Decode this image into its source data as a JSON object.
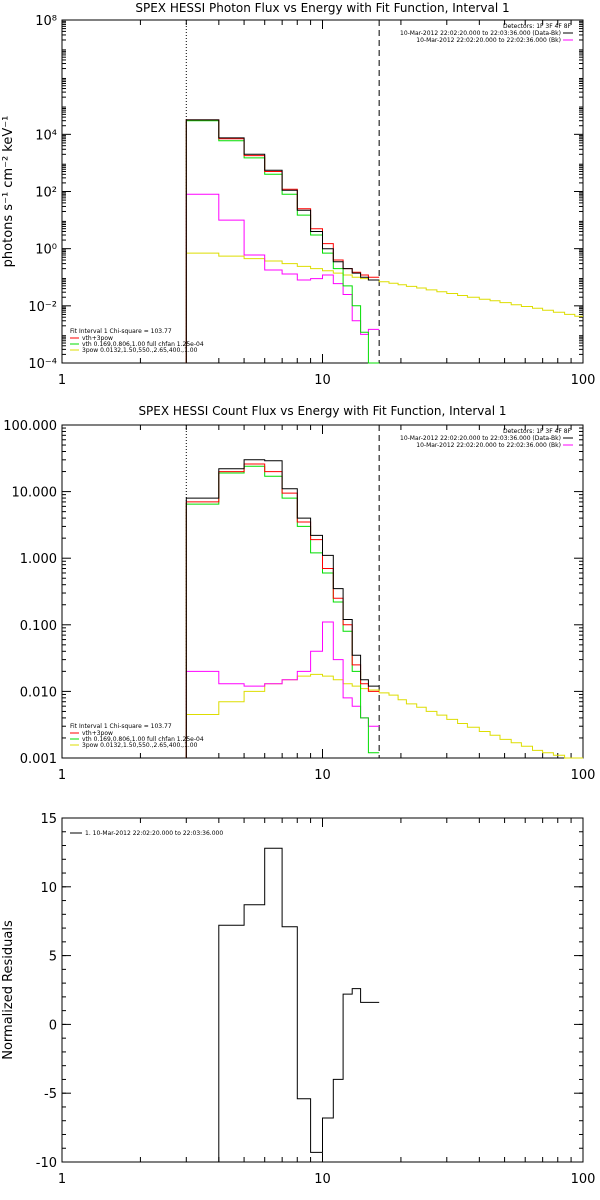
{
  "colors": {
    "total": "#000000",
    "vth_3pow": "#ff0000",
    "vth": "#00dd00",
    "three_pow": "#dddd00",
    "background": "#ff00ff"
  },
  "chart_data": [
    {
      "type": "line",
      "title": "SPEX HESSI Photon Flux vs Energy with Fit Function, Interval 1",
      "ylabel": "photons s⁻¹ cm⁻² keV⁻¹",
      "xlabel": "",
      "xscale": "log",
      "yscale": "log",
      "xlim": [
        1,
        100
      ],
      "ylim": [
        0.0001,
        100000000
      ],
      "xticks": [
        {
          "v": 1,
          "label": "1"
        },
        {
          "v": 10,
          "label": "10"
        },
        {
          "v": 100,
          "label": "100"
        }
      ],
      "yticks": [
        {
          "v": 0.0001,
          "label": "10⁻⁴"
        },
        {
          "v": 0.01,
          "label": "10⁻²"
        },
        {
          "v": 1,
          "label": "10⁰"
        },
        {
          "v": 100,
          "label": "10²"
        },
        {
          "v": 10000,
          "label": "10⁴"
        },
        {
          "v": 100000000,
          "label": "10⁸"
        }
      ],
      "grid": false,
      "markers": [
        {
          "x": 3,
          "style": "dotted"
        },
        {
          "x": 16.5,
          "style": "dashed"
        }
      ],
      "detectors": {
        "line1": "Detectors: 1F 3F 4F 8F",
        "line2": "10-Mar-2012 22:02:20.000 to 22:03:36.000 (Data-Bk)",
        "line3": "10-Mar-2012 22:02:20.000 to 22:02:36.000 (Bk)"
      },
      "legend": {
        "header": "Fit Interval 1    Chi-square = 103.77",
        "items": [
          "vth+3pow",
          "vth 0.169,0.806,1.00  full chfan 1.25e-04",
          "3pow 0.0132,1.50,550.,2.65,400.,1.00"
        ]
      },
      "edges": [
        3,
        4,
        5,
        6,
        7,
        8,
        9,
        10,
        11,
        12,
        13,
        14,
        15,
        16.5,
        18,
        19.5,
        21,
        23,
        25,
        27.5,
        30,
        33,
        36,
        40,
        44,
        48,
        53,
        58,
        64,
        70,
        77,
        85,
        93,
        100
      ],
      "series": [
        {
          "key": "three_pow",
          "values": [
            0.7,
            0.55,
            0.45,
            0.37,
            0.3,
            0.24,
            0.2,
            0.17,
            0.14,
            0.12,
            0.1,
            0.09,
            0.08,
            0.07,
            0.062,
            0.055,
            0.048,
            0.042,
            0.036,
            0.031,
            0.027,
            0.023,
            0.02,
            0.017,
            0.015,
            0.013,
            0.011,
            0.0095,
            0.0082,
            0.007,
            0.006,
            0.005,
            0.0043
          ]
        },
        {
          "key": "background",
          "values": [
            80,
            10,
            0.6,
            0.18,
            0.13,
            0.08,
            0.09,
            0.12,
            0.06,
            0.025,
            0.003,
            0.001,
            0.0015
          ]
        },
        {
          "key": "vth",
          "values": [
            30000,
            6000,
            1500,
            400,
            80,
            15,
            3,
            0.7,
            0.2,
            0.05,
            0.01,
            0.0012,
            8e-05
          ]
        },
        {
          "key": "vth_3pow",
          "values": [
            32000,
            7000,
            1800,
            500,
            120,
            25,
            5,
            1.5,
            0.4,
            0.2,
            0.15,
            0.12,
            0.1
          ]
        },
        {
          "key": "total",
          "values": [
            32000,
            7500,
            2000,
            550,
            110,
            22,
            4,
            1.0,
            0.35,
            0.2,
            0.14,
            0.1,
            0.08
          ]
        }
      ]
    },
    {
      "type": "line",
      "title": "SPEX HESSI Count Flux vs Energy with Fit Function, Interval 1",
      "ylabel": "",
      "xlabel": "",
      "xscale": "log",
      "yscale": "log",
      "xlim": [
        1,
        100
      ],
      "ylim": [
        0.001,
        100
      ],
      "xticks": [
        {
          "v": 1,
          "label": "1"
        },
        {
          "v": 10,
          "label": "10"
        },
        {
          "v": 100,
          "label": "100"
        }
      ],
      "yticks": [
        {
          "v": 0.001,
          "label": "0.001"
        },
        {
          "v": 0.01,
          "label": "0.010"
        },
        {
          "v": 0.1,
          "label": "0.100"
        },
        {
          "v": 1,
          "label": "1.000"
        },
        {
          "v": 10,
          "label": "10.000"
        },
        {
          "v": 100,
          "label": "100.000"
        }
      ],
      "grid": false,
      "markers": [
        {
          "x": 3,
          "style": "dotted"
        },
        {
          "x": 16.5,
          "style": "dashed"
        }
      ],
      "detectors": {
        "line1": "Detectors: 1F 3F 4F 8F",
        "line2": "10-Mar-2012 22:02:20.000 to 22:03:36.000 (Data-Bk)",
        "line3": "10-Mar-2012 22:02:20.000 to 22:02:36.000 (Bk)"
      },
      "legend": {
        "header": "Fit Interval 1    Chi-square = 103.77",
        "items": [
          "vth+3pow",
          "vth 0.169,0.806,1.00  full chfan 1.25e-04",
          "3pow 0.0132,1.50,550.,2.65,400.,1.00"
        ]
      },
      "edges": [
        3,
        4,
        5,
        6,
        7,
        8,
        9,
        10,
        11,
        12,
        13,
        14,
        15,
        16.5,
        18,
        19.5,
        21,
        23,
        25,
        27.5,
        30,
        33,
        36,
        40,
        44,
        48,
        53,
        58,
        64,
        70,
        77,
        85,
        93,
        100
      ],
      "series": [
        {
          "key": "three_pow",
          "values": [
            0.0045,
            0.007,
            0.01,
            0.013,
            0.015,
            0.017,
            0.018,
            0.017,
            0.015,
            0.013,
            0.012,
            0.011,
            0.0105,
            0.0095,
            0.0088,
            0.0075,
            0.0065,
            0.0058,
            0.005,
            0.0044,
            0.0038,
            0.0033,
            0.0029,
            0.0025,
            0.0022,
            0.0019,
            0.0017,
            0.0015,
            0.0013,
            0.0012,
            0.0011,
            0.001,
            0.0009
          ]
        },
        {
          "key": "background",
          "values": [
            0.02,
            0.013,
            0.012,
            0.013,
            0.015,
            0.02,
            0.04,
            0.11,
            0.03,
            0.008,
            0.006,
            0.004,
            0.003
          ]
        },
        {
          "key": "vth",
          "values": [
            6.5,
            19,
            24,
            17,
            8,
            3,
            1.2,
            0.6,
            0.22,
            0.08,
            0.02,
            0.004,
            0.0012
          ]
        },
        {
          "key": "vth_3pow",
          "values": [
            7,
            20,
            26,
            20,
            9.5,
            3.5,
            1.9,
            0.7,
            0.25,
            0.1,
            0.025,
            0.013,
            0.01
          ]
        },
        {
          "key": "total",
          "values": [
            8,
            22,
            30,
            29,
            11,
            4,
            2.2,
            1.1,
            0.35,
            0.12,
            0.035,
            0.015,
            0.012
          ]
        }
      ]
    },
    {
      "type": "line",
      "title": "",
      "ylabel": "Normalized Residuals",
      "xlabel": "",
      "xscale": "log",
      "yscale": "linear",
      "xlim": [
        1,
        100
      ],
      "ylim": [
        -10,
        15
      ],
      "xticks": [
        {
          "v": 1,
          "label": "1"
        },
        {
          "v": 10,
          "label": "10"
        },
        {
          "v": 100,
          "label": "100"
        }
      ],
      "yticks": [
        {
          "v": -10,
          "label": "-10"
        },
        {
          "v": -5,
          "label": "-5"
        },
        {
          "v": 0,
          "label": "0"
        },
        {
          "v": 5,
          "label": "5"
        },
        {
          "v": 10,
          "label": "10"
        },
        {
          "v": 15,
          "label": "15"
        }
      ],
      "grid": false,
      "markers": [],
      "legend": {
        "header": "",
        "items": [
          "1. 10-Mar-2012 22:02:20.000 to 22:03:36.000"
        ]
      },
      "edges": [
        3,
        4,
        5,
        6,
        7,
        8,
        9,
        10,
        11,
        12,
        13,
        14,
        15,
        16.5
      ],
      "series": [
        {
          "key": "total",
          "values": [
            -10,
            7.2,
            8.7,
            12.8,
            7.1,
            -5.4,
            -9.3,
            -6.8,
            -4.0,
            2.2,
            2.6,
            1.6,
            1.6
          ]
        }
      ]
    }
  ]
}
